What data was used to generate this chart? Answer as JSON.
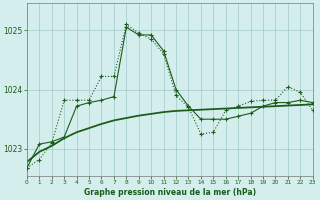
{
  "title": "Graphe pression niveau de la mer (hPa)",
  "background_color": "#d4eeed",
  "grid_color": "#aacfcf",
  "line_color": "#1a5c1a",
  "xlim": [
    0,
    23
  ],
  "ylim": [
    1022.55,
    1025.45
  ],
  "yticks": [
    1023,
    1024,
    1025
  ],
  "xticks": [
    0,
    1,
    2,
    3,
    4,
    5,
    6,
    7,
    8,
    9,
    10,
    11,
    12,
    13,
    14,
    15,
    16,
    17,
    18,
    19,
    20,
    21,
    22,
    23
  ],
  "s1_x": [
    0,
    1,
    2,
    3,
    4,
    5,
    6,
    7,
    8,
    9,
    10,
    11,
    12,
    13,
    14,
    15,
    16,
    17,
    18,
    19,
    20,
    21,
    22,
    23
  ],
  "s1_y": [
    1022.68,
    1022.82,
    1023.1,
    1023.82,
    1023.82,
    1023.82,
    1024.22,
    1024.22,
    1025.1,
    1024.95,
    1024.85,
    1024.6,
    1023.9,
    1023.7,
    1023.25,
    1023.28,
    1023.65,
    1023.72,
    1023.8,
    1023.82,
    1023.82,
    1024.05,
    1023.95,
    1023.65
  ],
  "s2_x": [
    0,
    1,
    2,
    3,
    4,
    5,
    6,
    7,
    8,
    9,
    10,
    11,
    12,
    13,
    14,
    15,
    16,
    17,
    18,
    19,
    20,
    21,
    22,
    23
  ],
  "s2_y": [
    1022.68,
    1023.08,
    1023.12,
    1023.2,
    1023.72,
    1023.78,
    1023.82,
    1023.88,
    1025.05,
    1024.92,
    1024.92,
    1024.65,
    1024.0,
    1023.72,
    1023.5,
    1023.5,
    1023.5,
    1023.55,
    1023.6,
    1023.72,
    1023.78,
    1023.78,
    1023.82,
    1023.78
  ],
  "s3_x": [
    0,
    1,
    2,
    3,
    4,
    5,
    6,
    7,
    8,
    9,
    10,
    11,
    12,
    13,
    14,
    15,
    16,
    17,
    18,
    19,
    20,
    21,
    22,
    23
  ],
  "s3_y": [
    1022.78,
    1022.95,
    1023.05,
    1023.18,
    1023.28,
    1023.35,
    1023.42,
    1023.48,
    1023.52,
    1023.56,
    1023.59,
    1023.62,
    1023.64,
    1023.65,
    1023.66,
    1023.67,
    1023.68,
    1023.69,
    1023.7,
    1023.71,
    1023.72,
    1023.73,
    1023.74,
    1023.75
  ]
}
